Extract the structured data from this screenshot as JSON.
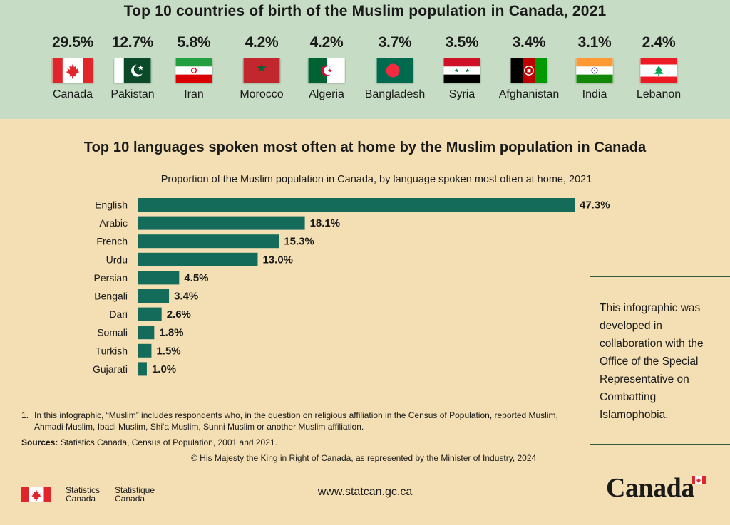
{
  "countries_section": {
    "title": "Top 10 countries of birth of the Muslim population in Canada, 2021",
    "items": [
      {
        "name": "Canada",
        "pct": "29.5%",
        "icon": "canada-flag-icon"
      },
      {
        "name": "Pakistan",
        "pct": "12.7%",
        "icon": "pakistan-flag-icon"
      },
      {
        "name": "Iran",
        "pct": "5.8%",
        "icon": "iran-flag-icon"
      },
      {
        "name": "Morocco",
        "pct": "4.2%",
        "icon": "morocco-flag-icon"
      },
      {
        "name": "Algeria",
        "pct": "4.2%",
        "icon": "algeria-flag-icon"
      },
      {
        "name": "Bangladesh",
        "pct": "3.7%",
        "icon": "bangladesh-flag-icon"
      },
      {
        "name": "Syria",
        "pct": "3.5%",
        "icon": "syria-flag-icon"
      },
      {
        "name": "Afghanistan",
        "pct": "3.4%",
        "icon": "afghanistan-flag-icon"
      },
      {
        "name": "India",
        "pct": "3.1%",
        "icon": "india-flag-icon"
      },
      {
        "name": "Lebanon",
        "pct": "2.4%",
        "icon": "lebanon-flag-icon"
      }
    ]
  },
  "languages_section": {
    "title": "Top 10 languages spoken most often at home by the Muslim population in Canada"
  },
  "chart_data": {
    "type": "bar",
    "orientation": "horizontal",
    "title": "Proportion of the Muslim population in Canada, by language spoken most often at home, 2021",
    "categories": [
      "English",
      "Arabic",
      "French",
      "Urdu",
      "Persian",
      "Bengali",
      "Dari",
      "Somali",
      "Turkish",
      "Gujarati"
    ],
    "values": [
      47.3,
      18.1,
      15.3,
      13.0,
      4.5,
      3.4,
      2.6,
      1.8,
      1.5,
      1.0
    ],
    "value_labels": [
      "47.3%",
      "18.1%",
      "15.3%",
      "13.0%",
      "4.5%",
      "3.4%",
      "2.6%",
      "1.8%",
      "1.5%",
      "1.0%"
    ],
    "unit": "%",
    "bar_color": "#146b5a",
    "grid": false
  },
  "collab_note": "This infographic was developed in collaboration with the Office of the Special Representative on Combatting Islamophobia.",
  "footnote": {
    "number": "1.",
    "text": "In this infographic, “Muslim” includes respondents who, in the question on religious affiliation in the Census of Population, reported Muslim, Ahmadi Muslim, Ibadi Muslim, Shi'a Muslim, Sunni Muslim or another Muslim affiliation."
  },
  "sources": {
    "label": "Sources:",
    "text": "Statistics Canada, Census of Population, 2001 and 2021."
  },
  "copyright": "© His Majesty the King in Right of Canada, as represented by the Minister of Industry, 2024",
  "footer": {
    "org_en_line1": "Statistics",
    "org_en_line2": "Canada",
    "org_fr_line1": "Statistique",
    "org_fr_line2": "Canada",
    "website": "www.statcan.gc.ca",
    "wordmark": "Canada"
  },
  "colors": {
    "top_background": "#c7dcc4",
    "page_background": "#f3dfb3",
    "bar": "#146b5a",
    "flag_red": "#e0262b"
  }
}
